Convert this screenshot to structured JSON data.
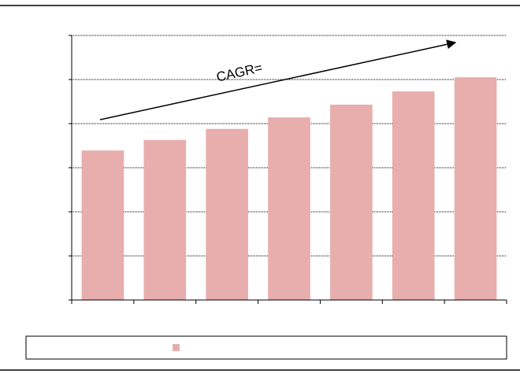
{
  "chart_data": {
    "type": "bar",
    "annotation": "CAGR=",
    "categories": [
      null,
      null,
      null,
      null,
      null,
      null,
      null
    ],
    "values": [
      3.39,
      3.63,
      3.88,
      4.14,
      4.43,
      4.73,
      5.05
    ],
    "color": "#e8adad",
    "ylim": [
      0,
      6
    ],
    "yticks": [
      0,
      1,
      2,
      3,
      4,
      5,
      6
    ],
    "grid": true
  }
}
